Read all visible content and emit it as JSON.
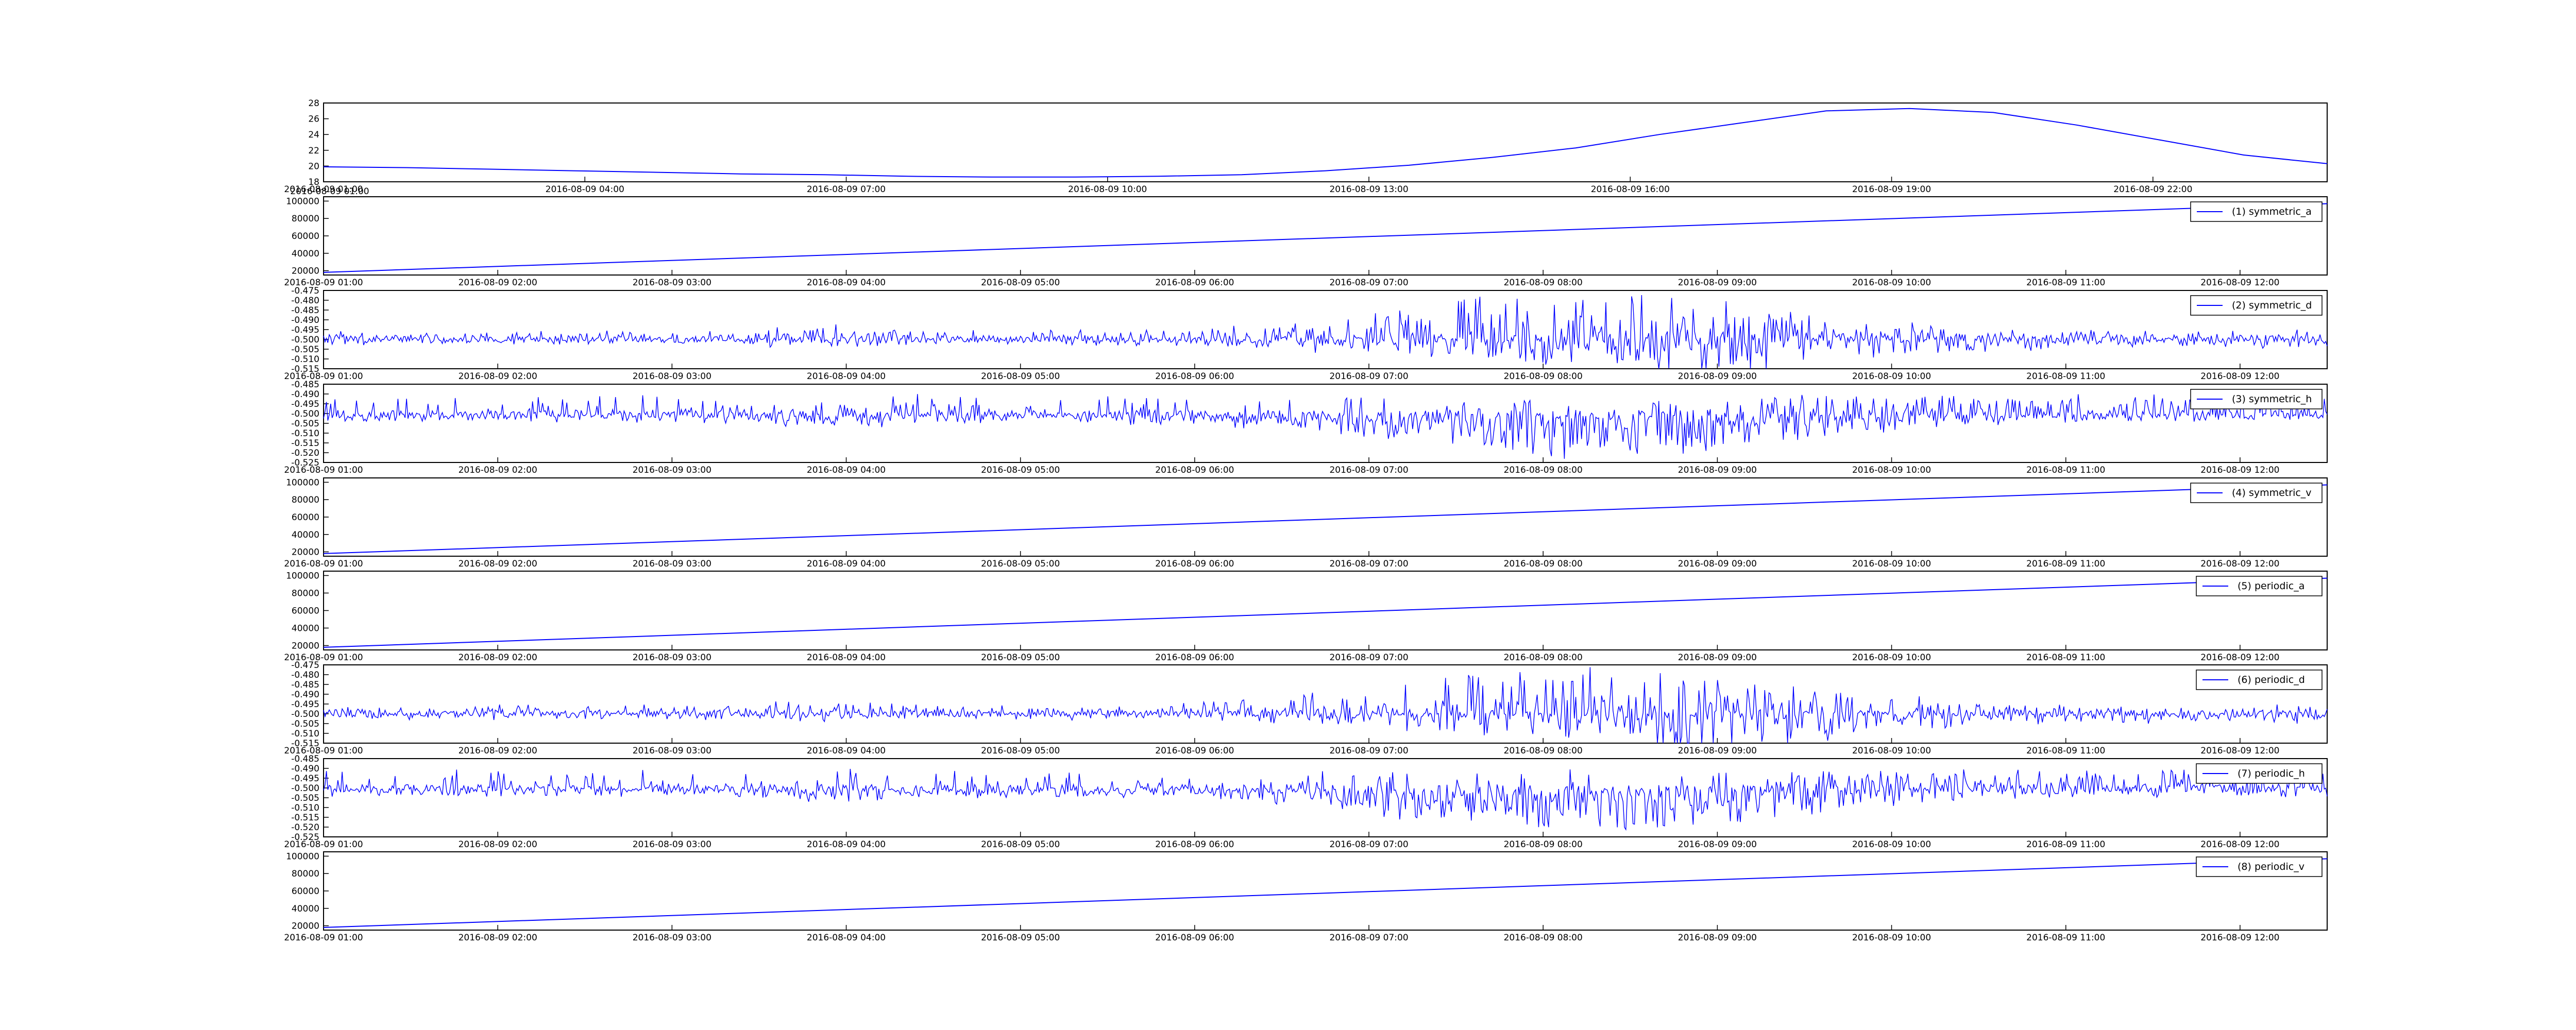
{
  "colors": {
    "line": "#0000ff",
    "axis": "#000000",
    "background": "#ffffff"
  },
  "chart_data": [
    {
      "type": "line",
      "xticks": [
        "2016-08-09 01:00",
        "2016-08-09 04:00",
        "2016-08-09 07:00",
        "2016-08-09 10:00",
        "2016-08-09 13:00",
        "2016-08-09 16:00",
        "2016-08-09 19:00",
        "2016-08-09 22:00"
      ],
      "xtick_overlap": "2016-08-09 01:00",
      "yticks": [
        "18",
        "20",
        "22",
        "24",
        "26",
        "28"
      ],
      "ylim": [
        18,
        28
      ],
      "x_hours": [
        0,
        1,
        2,
        3,
        4,
        5,
        6,
        7,
        8,
        9,
        10,
        11,
        12,
        13,
        14,
        15,
        16,
        17,
        18,
        19,
        20,
        21,
        22,
        23,
        24
      ],
      "series": [
        {
          "values": [
            19.9,
            19.8,
            19.6,
            19.4,
            19.2,
            19.0,
            18.9,
            18.7,
            18.6,
            18.6,
            18.7,
            18.9,
            19.4,
            20.1,
            21.1,
            22.3,
            24.0,
            25.5,
            27.0,
            27.3,
            26.8,
            25.2,
            23.3,
            21.4,
            20.3
          ]
        }
      ]
    },
    {
      "type": "line",
      "xticks": [
        "2016-08-09 01:00",
        "2016-08-09 02:00",
        "2016-08-09 03:00",
        "2016-08-09 04:00",
        "2016-08-09 05:00",
        "2016-08-09 06:00",
        "2016-08-09 07:00",
        "2016-08-09 08:00",
        "2016-08-09 09:00",
        "2016-08-09 10:00",
        "2016-08-09 11:00",
        "2016-08-09 12:00"
      ],
      "yticks": [
        "20000",
        "40000",
        "60000",
        "80000",
        "100000"
      ],
      "ylim": [
        15000,
        105000
      ],
      "series": [
        {
          "name": "(1) symmetric_a",
          "start": 18000,
          "end": 97000
        }
      ]
    },
    {
      "type": "line",
      "xticks": [
        "2016-08-09 01:00",
        "2016-08-09 02:00",
        "2016-08-09 03:00",
        "2016-08-09 04:00",
        "2016-08-09 05:00",
        "2016-08-09 06:00",
        "2016-08-09 07:00",
        "2016-08-09 08:00",
        "2016-08-09 09:00",
        "2016-08-09 10:00",
        "2016-08-09 11:00",
        "2016-08-09 12:00"
      ],
      "yticks": [
        "-0.515",
        "-0.510",
        "-0.505",
        "-0.500",
        "-0.495",
        "-0.490",
        "-0.485",
        "-0.480",
        "-0.475"
      ],
      "ylim": [
        -0.515,
        -0.475
      ],
      "series": [
        {
          "name": "(2) symmetric_d",
          "baseline": -0.5,
          "amplitude": 0.025
        }
      ]
    },
    {
      "type": "line",
      "xticks": [
        "2016-08-09 01:00",
        "2016-08-09 02:00",
        "2016-08-09 03:00",
        "2016-08-09 04:00",
        "2016-08-09 05:00",
        "2016-08-09 06:00",
        "2016-08-09 07:00",
        "2016-08-09 08:00",
        "2016-08-09 09:00",
        "2016-08-09 10:00",
        "2016-08-09 11:00",
        "2016-08-09 12:00"
      ],
      "yticks": [
        "-0.525",
        "-0.520",
        "-0.515",
        "-0.510",
        "-0.505",
        "-0.500",
        "-0.495",
        "-0.490",
        "-0.485"
      ],
      "ylim": [
        -0.525,
        -0.485
      ],
      "series": [
        {
          "name": "(3) symmetric_h",
          "baseline": -0.5,
          "amplitude": 0.025
        }
      ]
    },
    {
      "type": "line",
      "xticks": [
        "2016-08-09 01:00",
        "2016-08-09 02:00",
        "2016-08-09 03:00",
        "2016-08-09 04:00",
        "2016-08-09 05:00",
        "2016-08-09 06:00",
        "2016-08-09 07:00",
        "2016-08-09 08:00",
        "2016-08-09 09:00",
        "2016-08-09 10:00",
        "2016-08-09 11:00",
        "2016-08-09 12:00"
      ],
      "yticks": [
        "20000",
        "40000",
        "60000",
        "80000",
        "100000"
      ],
      "ylim": [
        15000,
        105000
      ],
      "series": [
        {
          "name": "(4) symmetric_v",
          "start": 18000,
          "end": 97000
        }
      ]
    },
    {
      "type": "line",
      "xticks": [
        "2016-08-09 01:00",
        "2016-08-09 02:00",
        "2016-08-09 03:00",
        "2016-08-09 04:00",
        "2016-08-09 05:00",
        "2016-08-09 06:00",
        "2016-08-09 07:00",
        "2016-08-09 08:00",
        "2016-08-09 09:00",
        "2016-08-09 10:00",
        "2016-08-09 11:00",
        "2016-08-09 12:00"
      ],
      "yticks": [
        "20000",
        "40000",
        "60000",
        "80000",
        "100000"
      ],
      "ylim": [
        15000,
        105000
      ],
      "series": [
        {
          "name": "(5) periodic_a",
          "start": 18000,
          "end": 97000
        }
      ]
    },
    {
      "type": "line",
      "xticks": [
        "2016-08-09 01:00",
        "2016-08-09 02:00",
        "2016-08-09 03:00",
        "2016-08-09 04:00",
        "2016-08-09 05:00",
        "2016-08-09 06:00",
        "2016-08-09 07:00",
        "2016-08-09 08:00",
        "2016-08-09 09:00",
        "2016-08-09 10:00",
        "2016-08-09 11:00",
        "2016-08-09 12:00"
      ],
      "yticks": [
        "-0.515",
        "-0.510",
        "-0.505",
        "-0.500",
        "-0.495",
        "-0.490",
        "-0.485",
        "-0.480",
        "-0.475"
      ],
      "ylim": [
        -0.515,
        -0.475
      ],
      "series": [
        {
          "name": "(6) periodic_d",
          "baseline": -0.5,
          "amplitude": 0.025
        }
      ]
    },
    {
      "type": "line",
      "xticks": [
        "2016-08-09 01:00",
        "2016-08-09 02:00",
        "2016-08-09 03:00",
        "2016-08-09 04:00",
        "2016-08-09 05:00",
        "2016-08-09 06:00",
        "2016-08-09 07:00",
        "2016-08-09 08:00",
        "2016-08-09 09:00",
        "2016-08-09 10:00",
        "2016-08-09 11:00",
        "2016-08-09 12:00"
      ],
      "yticks": [
        "-0.525",
        "-0.520",
        "-0.515",
        "-0.510",
        "-0.505",
        "-0.500",
        "-0.495",
        "-0.490",
        "-0.485"
      ],
      "ylim": [
        -0.525,
        -0.485
      ],
      "series": [
        {
          "name": "(7) periodic_h",
          "baseline": -0.5,
          "amplitude": 0.025
        }
      ]
    },
    {
      "type": "line",
      "xticks": [
        "2016-08-09 01:00",
        "2016-08-09 02:00",
        "2016-08-09 03:00",
        "2016-08-09 04:00",
        "2016-08-09 05:00",
        "2016-08-09 06:00",
        "2016-08-09 07:00",
        "2016-08-09 08:00",
        "2016-08-09 09:00",
        "2016-08-09 10:00",
        "2016-08-09 11:00",
        "2016-08-09 12:00"
      ],
      "yticks": [
        "20000",
        "40000",
        "60000",
        "80000",
        "100000"
      ],
      "ylim": [
        15000,
        105000
      ],
      "series": [
        {
          "name": "(8) periodic_v",
          "start": 18000,
          "end": 97000
        }
      ]
    }
  ]
}
